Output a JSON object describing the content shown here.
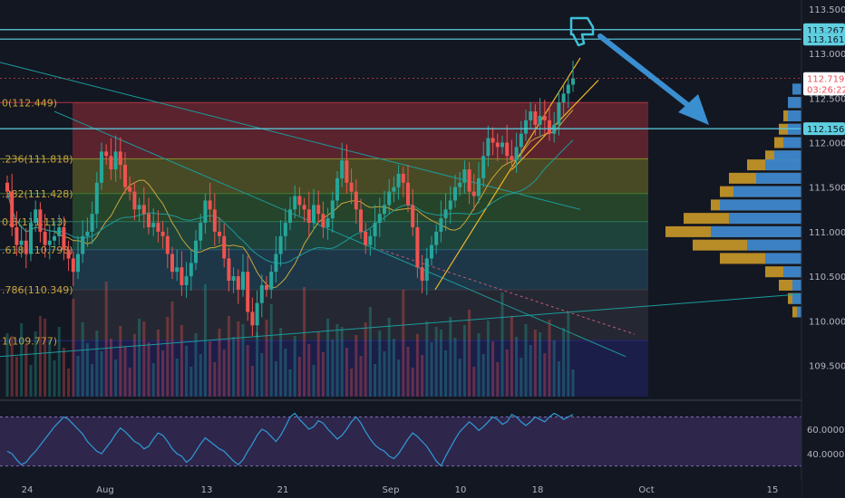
{
  "chart_data": {
    "type": "candlestick",
    "price_axis": {
      "range": [
        109.15,
        113.6
      ],
      "ticks": [
        {
          "label": "113.500",
          "value": 113.5
        },
        {
          "label": "113.000",
          "value": 113.0
        },
        {
          "label": "112.500",
          "value": 112.5
        },
        {
          "label": "112.000",
          "value": 112.0
        },
        {
          "label": "111.500",
          "value": 111.5
        },
        {
          "label": "111.000",
          "value": 111.0
        },
        {
          "label": "110.500",
          "value": 110.5
        },
        {
          "label": "110.000",
          "value": 110.0
        },
        {
          "label": "109.500",
          "value": 109.5
        }
      ]
    },
    "price_tags": [
      {
        "label": "113.267",
        "value": 113.267,
        "color": "#5fcfe0",
        "text_color": "#131722"
      },
      {
        "label": "113.161",
        "value": 113.161,
        "color": "#5fcfe0",
        "text_color": "#131722"
      },
      {
        "label": "112.719",
        "value": 112.719,
        "color": "#ffffff",
        "text_color": "#e8505b"
      },
      {
        "label": "03:26:22",
        "value": 112.6,
        "color": "#ffffff",
        "text_color": "#e8505b"
      },
      {
        "label": "112.156",
        "value": 112.156,
        "color": "#5fcfe0",
        "text_color": "#131722"
      }
    ],
    "horizontal_lines": [
      113.267,
      113.161,
      112.156
    ],
    "fib_levels": [
      {
        "label": "0(112.449)",
        "value": 112.449,
        "fill": "#b2343f"
      },
      {
        "label": ".236(111.818)",
        "value": 111.818,
        "fill": "#8a8a2a"
      },
      {
        "label": ".382(111.428)",
        "value": 111.428,
        "fill": "#3f7d35"
      },
      {
        "label": "0.5(111.113)",
        "value": 111.113,
        "fill": "#2c7a5a"
      },
      {
        "label": ".618(110.798)",
        "value": 110.798,
        "fill": "#2b5f78"
      },
      {
        "label": ".786(110.349)",
        "value": 110.349,
        "fill": "#3b3d46"
      },
      {
        "label": "1(109.777)",
        "value": 109.777,
        "fill": "#26287a"
      }
    ],
    "x_axis_labels": [
      "24",
      "Aug",
      "13",
      "21",
      "Sep",
      "10",
      "18",
      "Oct",
      "15"
    ],
    "candles_close": [
      111.45,
      111.05,
      110.85,
      110.9,
      110.75,
      111.1,
      111.25,
      111.0,
      110.85,
      110.9,
      110.95,
      111.05,
      110.8,
      110.7,
      110.55,
      110.75,
      110.95,
      111.0,
      111.2,
      111.55,
      111.9,
      111.85,
      111.7,
      111.9,
      111.75,
      111.5,
      111.45,
      111.25,
      111.3,
      111.2,
      111.05,
      111.1,
      111.0,
      110.95,
      110.75,
      110.55,
      110.6,
      110.4,
      110.5,
      110.65,
      110.9,
      111.1,
      111.35,
      111.25,
      111.0,
      110.95,
      110.7,
      110.45,
      110.5,
      110.35,
      110.55,
      110.1,
      109.95,
      110.2,
      110.4,
      110.35,
      110.55,
      110.75,
      110.95,
      111.1,
      111.25,
      111.4,
      111.3,
      111.25,
      111.1,
      111.3,
      111.2,
      111.05,
      111.15,
      111.35,
      111.6,
      111.8,
      111.55,
      111.45,
      111.25,
      111.0,
      110.85,
      110.95,
      111.1,
      111.2,
      111.3,
      111.45,
      111.5,
      111.65,
      111.55,
      111.3,
      111.05,
      110.6,
      110.45,
      110.7,
      110.85,
      111.0,
      111.15,
      111.25,
      111.35,
      111.5,
      111.55,
      111.7,
      111.45,
      111.4,
      111.6,
      111.85,
      112.05,
      112.0,
      111.95,
      112.0,
      111.85,
      111.8,
      111.95,
      112.1,
      112.25,
      112.35,
      112.2,
      112.3,
      112.25,
      112.1,
      112.2,
      112.45,
      112.55,
      112.65,
      112.72
    ],
    "rsi": {
      "axis_ticks": [
        {
          "label": "60.0000",
          "value": 60
        },
        {
          "label": "40.0000",
          "value": 40
        }
      ],
      "range": [
        26,
        80
      ],
      "band": [
        70,
        30
      ],
      "values": [
        42,
        40,
        35,
        31,
        33,
        38,
        42,
        47,
        52,
        57,
        62,
        66,
        70,
        68,
        64,
        60,
        56,
        50,
        46,
        42,
        40,
        45,
        50,
        56,
        61,
        58,
        54,
        50,
        48,
        44,
        46,
        52,
        57,
        55,
        50,
        44,
        40,
        38,
        33,
        36,
        42,
        48,
        53,
        50,
        47,
        44,
        42,
        38,
        34,
        31,
        35,
        42,
        48,
        55,
        60,
        58,
        54,
        50,
        55,
        62,
        70,
        73,
        68,
        64,
        60,
        62,
        67,
        65,
        60,
        56,
        52,
        55,
        60,
        66,
        70,
        65,
        58,
        52,
        47,
        44,
        42,
        38,
        36,
        40,
        46,
        52,
        57,
        54,
        50,
        46,
        40,
        34,
        30,
        38,
        45,
        52,
        58,
        62,
        66,
        63,
        59,
        62,
        66,
        70,
        68,
        64,
        66,
        72,
        70,
        66,
        63,
        66,
        70,
        68,
        66,
        70,
        73,
        71,
        68,
        70,
        72
      ]
    }
  },
  "colors": {
    "background": "#131722",
    "bull": "#26a69a",
    "bear": "#ef5350",
    "rsi_line": "#2e9bd6",
    "rsi_band": "#3b2d5c",
    "teal_line": "#1c9b9b",
    "channel": "#f0b429",
    "arrow": "#3a8fd0",
    "thumb": "#3fc1d8"
  },
  "icons": {
    "annotation": "thumbs-down-icon"
  }
}
